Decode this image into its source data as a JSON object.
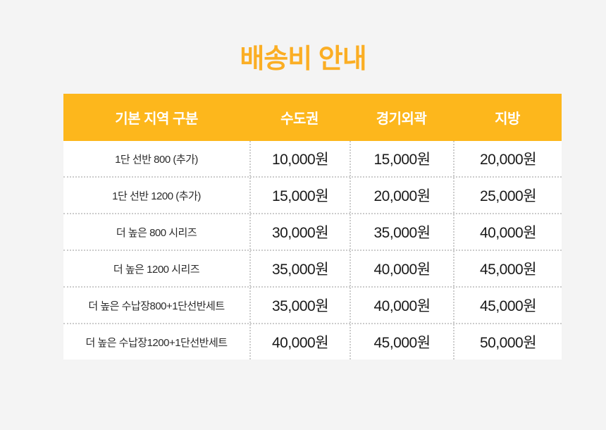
{
  "page": {
    "title": "배송비 안내"
  },
  "colors": {
    "page_bg": "#f4f4f4",
    "title_text": "#fbae24",
    "header_bg": "#fdb71c",
    "header_text": "#ffffff",
    "row_bg": "#ffffff",
    "label_text": "#2b2b2b",
    "price_text": "#1a1a1a",
    "dotted_border": "#cccccc"
  },
  "table": {
    "headers": [
      "기본 지역 구분",
      "수도권",
      "경기외곽",
      "지방"
    ],
    "rows": [
      {
        "label": "1단 선반 800 (추가)",
        "values": [
          "10,000원",
          "15,000원",
          "20,000원"
        ]
      },
      {
        "label": "1단 선반 1200 (추가)",
        "values": [
          "15,000원",
          "20,000원",
          "25,000원"
        ]
      },
      {
        "label": "더 높은 800 시리즈",
        "values": [
          "30,000원",
          "35,000원",
          "40,000원"
        ]
      },
      {
        "label": "더 높은 1200 시리즈",
        "values": [
          "35,000원",
          "40,000원",
          "45,000원"
        ]
      },
      {
        "label": "더 높은 수납장800+1단선반세트",
        "values": [
          "35,000원",
          "40,000원",
          "45,000원"
        ]
      },
      {
        "label": "더 높은 수납장1200+1단선반세트",
        "values": [
          "40,000원",
          "45,000원",
          "50,000원"
        ]
      }
    ]
  },
  "chart_data": {
    "type": "table",
    "title": "배송비 안내",
    "columns": [
      "기본 지역 구분",
      "수도권",
      "경기외곽",
      "지방"
    ],
    "rows": [
      [
        "1단 선반 800 (추가)",
        "10,000원",
        "15,000원",
        "20,000원"
      ],
      [
        "1단 선반 1200 (추가)",
        "15,000원",
        "20,000원",
        "25,000원"
      ],
      [
        "더 높은 800 시리즈",
        "30,000원",
        "35,000원",
        "40,000원"
      ],
      [
        "더 높은 1200 시리즈",
        "35,000원",
        "40,000원",
        "45,000원"
      ],
      [
        "더 높은 수납장800+1단선반세트",
        "35,000원",
        "40,000원",
        "45,000원"
      ],
      [
        "더 높은 수납장1200+1단선반세트",
        "40,000원",
        "45,000원",
        "50,000원"
      ]
    ]
  }
}
